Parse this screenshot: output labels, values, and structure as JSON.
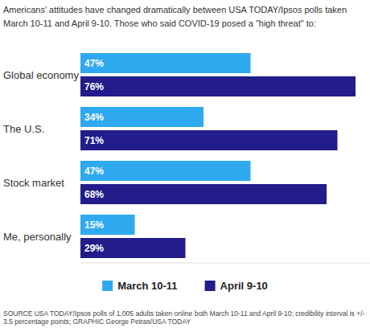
{
  "chart_data": {
    "type": "bar",
    "orientation": "horizontal",
    "title": "Americans' attitudes have changed dramatically between USA TODAY/Ipsos polls taken March 10-11 and April 9-10. Those who said COVID-19 posed a \"high threat\" to:",
    "annotations": [
      "SOURCE USA TODAY/Ipsos polls of 1,005 adults taken online both March 10-11 and April 9-10; credibility interval is +/- 3.5 percentage points; GRAPHIC George Petras/USA TODAY"
    ],
    "categories": [
      "Global economy",
      "The U.S.",
      "Stock market",
      "Me, personally"
    ],
    "series": [
      {
        "name": "March 10-11",
        "color": "#2fa9ef",
        "values": [
          47,
          34,
          47,
          15
        ],
        "value_labels": [
          "47%",
          "34%",
          "47%",
          "15%"
        ]
      },
      {
        "name": "April 9-10",
        "color": "#221d8a",
        "values": [
          76,
          71,
          68,
          29
        ],
        "value_labels": [
          "76%",
          "71%",
          "68%",
          "29%"
        ]
      }
    ],
    "ylim": [
      0,
      80
    ],
    "grid": false,
    "legend": "bottom",
    "data_labels": true,
    "tick_labels": "y"
  }
}
